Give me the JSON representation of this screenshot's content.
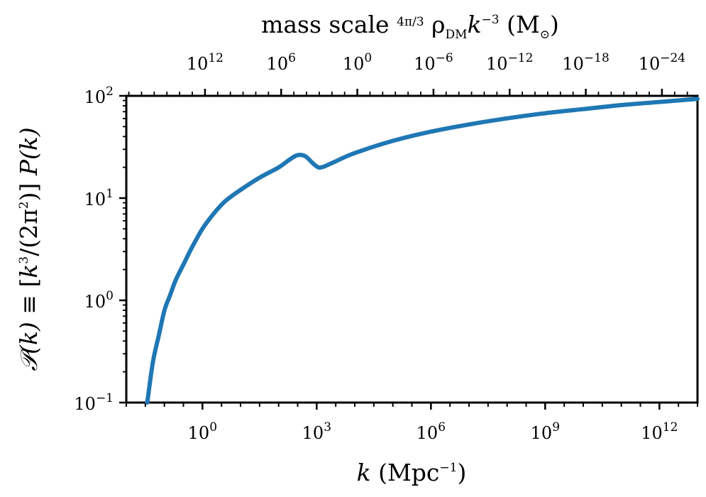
{
  "chart_data": {
    "type": "line",
    "title": "",
    "xlabel": "k (Mpc⁻¹)",
    "ylabel": "𝒫(k) ≡ [k³/(2π²)] P(k)",
    "top_xlabel": "mass scale (4π/3) ρDM k⁻³ (M⊙)",
    "xscale": "log10",
    "yscale": "log10",
    "xlim_log10": [
      -2.0,
      13.0
    ],
    "ylim_log10": [
      -1.0,
      2.0
    ],
    "grid": false,
    "legend": "none",
    "x_ticks": [
      {
        "base": "10",
        "exp": "0",
        "log10": 0
      },
      {
        "base": "10",
        "exp": "3",
        "log10": 3
      },
      {
        "base": "10",
        "exp": "6",
        "log10": 6
      },
      {
        "base": "10",
        "exp": "9",
        "log10": 9
      },
      {
        "base": "10",
        "exp": "12",
        "log10": 12
      }
    ],
    "y_ticks": [
      {
        "base": "10",
        "exp": "−1",
        "log10": -1
      },
      {
        "base": "10",
        "exp": "0",
        "log10": 0
      },
      {
        "base": "10",
        "exp": "1",
        "log10": 1
      },
      {
        "base": "10",
        "exp": "2",
        "log10": 2
      }
    ],
    "top_ticks": [
      {
        "base": "10",
        "exp": "12",
        "mass_log10": 12
      },
      {
        "base": "10",
        "exp": "6",
        "mass_log10": 6
      },
      {
        "base": "10",
        "exp": "0",
        "mass_log10": 0
      },
      {
        "base": "10",
        "exp": "−6",
        "mass_log10": -6
      },
      {
        "base": "10",
        "exp": "−12",
        "mass_log10": -12
      },
      {
        "base": "10",
        "exp": "−18",
        "mass_log10": -18
      },
      {
        "base": "10",
        "exp": "−24",
        "mass_log10": -24
      }
    ],
    "top_axis_map": {
      "mass_log10_at_k_log10_zero": 12.2,
      "slope": -3
    },
    "series": [
      {
        "name": "P(k)",
        "color": "#1f77b4",
        "x_log10": [
          -1.45,
          -1.3,
          -1.15,
          -1.0,
          -0.85,
          -0.7,
          -0.5,
          -0.3,
          0.0,
          0.3,
          0.6,
          1.0,
          1.5,
          2.0,
          2.3,
          2.5,
          2.7,
          2.9,
          3.05,
          3.2,
          3.5,
          4.0,
          5.0,
          6.0,
          7.0,
          8.0,
          9.0,
          10.0,
          11.0,
          12.0,
          13.0
        ],
        "y_log10": [
          -1.0,
          -0.6,
          -0.35,
          -0.1,
          0.05,
          0.2,
          0.35,
          0.5,
          0.7,
          0.85,
          0.97,
          1.08,
          1.2,
          1.3,
          1.38,
          1.42,
          1.41,
          1.34,
          1.3,
          1.31,
          1.36,
          1.44,
          1.56,
          1.65,
          1.72,
          1.78,
          1.83,
          1.87,
          1.91,
          1.94,
          1.97
        ]
      }
    ]
  }
}
